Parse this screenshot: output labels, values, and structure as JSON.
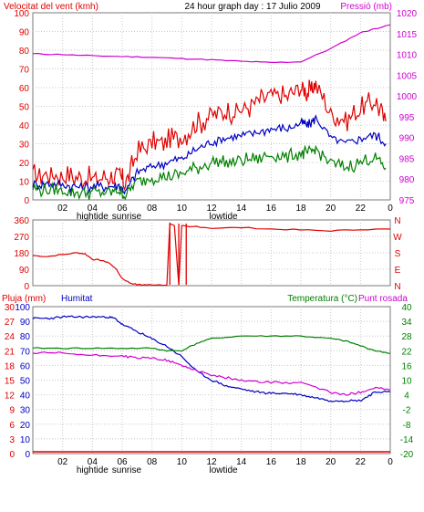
{
  "colors": {
    "wind": "#e00000",
    "wind_avg": "#0000c0",
    "wind_min": "#008000",
    "pressure": "#d000d0",
    "direction": "#e00000",
    "rain": "#e00000",
    "humidity": "#0000c0",
    "temperature": "#008000",
    "dewpoint": "#d000d0",
    "axis": "#000000",
    "grid": "#c8c8c8",
    "frame": "#7a7a7a",
    "background": "#ffffff"
  },
  "chart_data": [
    {
      "type": "line",
      "title": "24 hour graph day : 17 Julio 2009",
      "ylabel": "Velocitat del vent (kmh)",
      "y2label": "Pressió (mb)",
      "ylim": [
        0,
        100
      ],
      "y2lim": [
        975,
        1022
      ],
      "yticks": [
        "100",
        "90",
        "80",
        "70",
        "60",
        "50",
        "40",
        "30",
        "20",
        "10",
        "0"
      ],
      "y2ticks": [
        "1020",
        "1015",
        "1010",
        "1005",
        "1000",
        "995",
        "990",
        "985",
        "980",
        "975"
      ],
      "xlim": [
        0,
        24
      ],
      "xticks": [
        "02",
        "04",
        "06",
        "08",
        "10",
        "12",
        "14",
        "16",
        "18",
        "20",
        "22",
        "0"
      ],
      "x_events": [
        "hightide",
        "sunrise",
        "lowtide"
      ],
      "grid": true,
      "series": [
        {
          "axis": "left",
          "style": "wind",
          "x": [
            0,
            1,
            2,
            3,
            4,
            5,
            5.8,
            6.2,
            7,
            8,
            9,
            10,
            11,
            12,
            13,
            14,
            15,
            16,
            17,
            18,
            18.5,
            19,
            20,
            21,
            22,
            23,
            23.7
          ],
          "y": [
            13,
            14,
            13,
            12,
            11,
            12,
            13,
            8,
            25,
            30,
            31,
            34,
            40,
            46,
            47,
            48,
            52,
            56,
            55,
            60,
            57,
            62,
            46,
            43,
            48,
            53,
            42
          ]
        },
        {
          "axis": "left",
          "style": "wind_avg",
          "x": [
            0,
            1,
            2,
            3,
            4,
            5,
            5.8,
            6.2,
            7,
            8,
            9,
            10,
            11,
            12,
            13,
            14,
            15,
            16,
            17,
            18,
            18.5,
            19,
            20,
            21,
            22,
            23,
            23.7
          ],
          "y": [
            8,
            9,
            8,
            7,
            7,
            7,
            8,
            4,
            15,
            18,
            20,
            22,
            27,
            31,
            33,
            34,
            36,
            38,
            38,
            41,
            40,
            44,
            33,
            30,
            33,
            35,
            30
          ]
        },
        {
          "axis": "left",
          "style": "wind_min",
          "x": [
            0,
            1,
            2,
            3,
            4,
            5,
            5.8,
            6.2,
            7,
            8,
            9,
            10,
            11,
            12,
            13,
            14,
            15,
            16,
            17,
            18,
            18.5,
            19,
            20,
            21,
            22,
            23,
            23.7
          ],
          "y": [
            6,
            5,
            5,
            4,
            4,
            4,
            5,
            2,
            10,
            12,
            12,
            14,
            17,
            20,
            20,
            21,
            22,
            24,
            23,
            25,
            25,
            27,
            20,
            17,
            20,
            23,
            17
          ]
        },
        {
          "axis": "right",
          "style": "pressure",
          "x": [
            0,
            2,
            4,
            6,
            8,
            10,
            12,
            14,
            16,
            18,
            20,
            22,
            23,
            24
          ],
          "y": [
            1011.7,
            1011.5,
            1011.2,
            1011.0,
            1010.8,
            1010.5,
            1010.2,
            1009.8,
            1009.5,
            1009.7,
            1013,
            1017,
            1018,
            1019
          ]
        }
      ]
    },
    {
      "type": "line",
      "ylim": [
        0,
        360
      ],
      "yticks": [
        "360",
        "270",
        "180",
        "90",
        "0"
      ],
      "y2ticks": [
        "N",
        "W",
        "S",
        "E",
        "N"
      ],
      "xlim": [
        0,
        24
      ],
      "grid": true,
      "series": [
        {
          "axis": "left",
          "style": "direction",
          "x": [
            0,
            1,
            2,
            3,
            3.5,
            4,
            4.5,
            5,
            5.5,
            6,
            6.5,
            7,
            7.5,
            8,
            9,
            9.2,
            9.5,
            9.8,
            10,
            10.5,
            11,
            12,
            14,
            16,
            18,
            20,
            22,
            24
          ],
          "y": [
            165,
            160,
            170,
            180,
            175,
            145,
            140,
            130,
            100,
            40,
            15,
            5,
            5,
            5,
            5,
            340,
            330,
            5,
            330,
            320,
            325,
            315,
            318,
            310,
            305,
            300,
            308,
            310
          ]
        }
      ]
    },
    {
      "type": "line",
      "ylabel": "Pluja (mm)",
      "y1label": "Humitat",
      "y2label": "Temperatura (°C)",
      "y3label": "Punt rosada",
      "ylim": [
        0,
        30
      ],
      "y1lim": [
        0,
        100
      ],
      "y2lim": [
        -20,
        40
      ],
      "yticks": [
        "30",
        "27",
        "24",
        "21",
        "18",
        "15",
        "12",
        "9",
        "6",
        "3",
        "0"
      ],
      "y1ticks": [
        "100",
        "90",
        "80",
        "70",
        "60",
        "50",
        "40",
        "30",
        "20",
        "10",
        "0"
      ],
      "y2ticks": [
        "40",
        "34",
        "28",
        "22",
        "16",
        "10",
        "4",
        "-2",
        "-8",
        "-14",
        "-20"
      ],
      "xlim": [
        0,
        24
      ],
      "xticks": [
        "02",
        "04",
        "06",
        "08",
        "10",
        "12",
        "14",
        "16",
        "18",
        "20",
        "22",
        "0"
      ],
      "x_events": [
        "hightide",
        "sunrise",
        "lowtide"
      ],
      "grid": true,
      "series": [
        {
          "axis": "rain",
          "style": "rain",
          "x": [
            0,
            24
          ],
          "y": [
            0,
            0
          ]
        },
        {
          "axis": "humidity",
          "style": "humidity",
          "x": [
            0,
            1,
            2,
            3,
            4,
            5,
            5.5,
            6,
            7,
            8,
            9,
            10,
            11,
            12,
            13,
            14,
            15,
            16,
            17,
            18,
            19,
            20,
            21,
            22,
            22.5,
            23,
            24
          ],
          "y": [
            92,
            92,
            93,
            93,
            93,
            93,
            92,
            88,
            83,
            78,
            73,
            66,
            56,
            50,
            46,
            44,
            42,
            41,
            41,
            40,
            38,
            36,
            36,
            36,
            39,
            42,
            42
          ]
        },
        {
          "axis": "temperature",
          "style": "temperature",
          "x": [
            0,
            2,
            4,
            6,
            8,
            9,
            10,
            11,
            12,
            14,
            16,
            18,
            20,
            21,
            22,
            23,
            24
          ],
          "y": [
            23,
            23,
            23,
            23,
            23,
            22,
            22,
            25,
            27,
            28,
            28,
            28,
            27,
            26,
            24,
            22,
            21
          ]
        },
        {
          "axis": "temperature",
          "style": "dewpoint",
          "x": [
            0,
            2,
            4,
            6,
            7,
            8,
            9,
            10,
            11,
            12,
            13,
            14,
            16,
            18,
            20,
            21,
            22,
            23,
            24
          ],
          "y": [
            21,
            21,
            20,
            20,
            19,
            19,
            18,
            16,
            14,
            12,
            11,
            10,
            9,
            9,
            5,
            4,
            5,
            7,
            6
          ]
        }
      ]
    }
  ]
}
